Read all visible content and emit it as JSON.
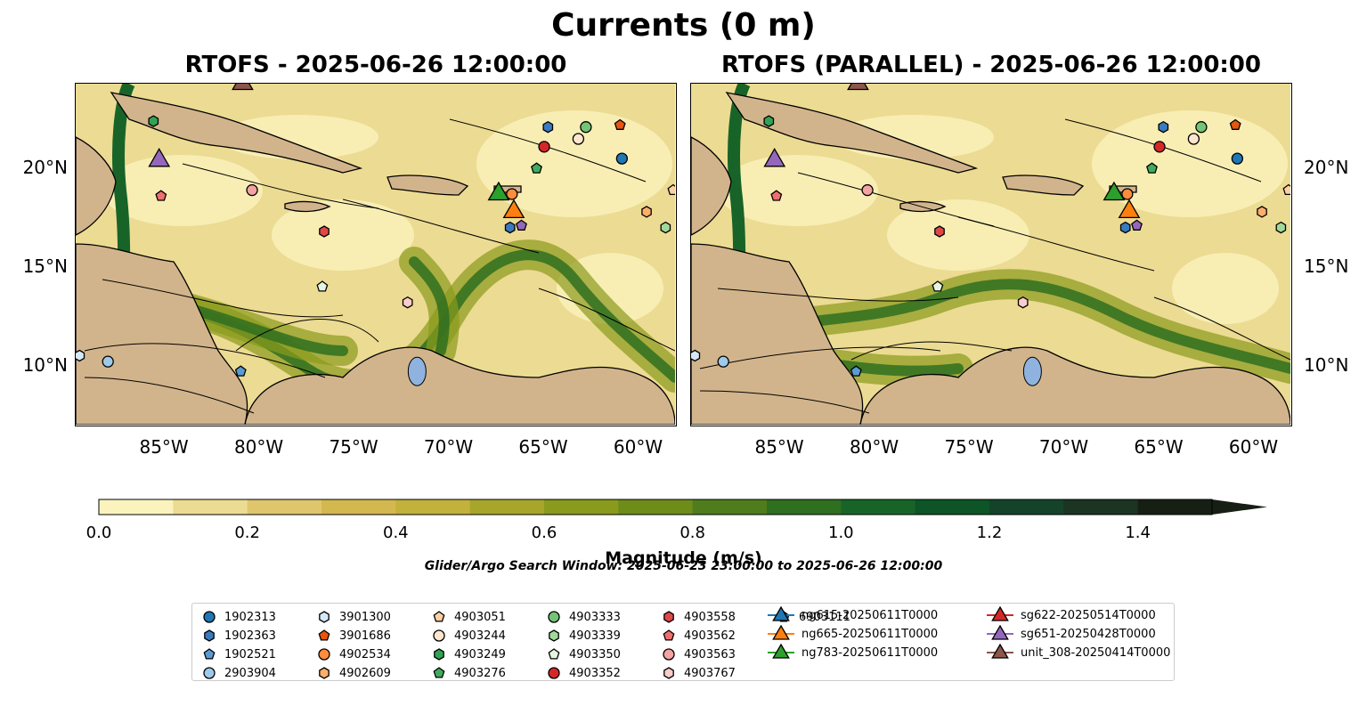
{
  "title": "Currents (0 m)",
  "panels": [
    {
      "title": "RTOFS - 2025-06-26 12:00:00"
    },
    {
      "title": "RTOFS (PARALLEL) - 2025-06-26 12:00:00"
    }
  ],
  "axes": {
    "x_ticks": [
      "85°W",
      "80°W",
      "75°W",
      "70°W",
      "65°W",
      "60°W"
    ],
    "y_ticks": [
      "20°N",
      "15°N",
      "10°N"
    ],
    "x_values": [
      -85,
      -80,
      -75,
      -70,
      -65,
      -60
    ],
    "y_values": [
      20,
      15,
      10
    ],
    "lon_range": [
      -89.7,
      -58.1
    ],
    "lat_range": [
      7.0,
      24.3
    ]
  },
  "colorbar": {
    "label": "Magnitude (m/s)",
    "ticks": [
      "0.0",
      "0.2",
      "0.4",
      "0.6",
      "0.8",
      "1.0",
      "1.2",
      "1.4"
    ],
    "range": [
      0.0,
      1.5
    ],
    "colors": [
      "#fbf3bd",
      "#ecdb92",
      "#dfc66c",
      "#d3b84f",
      "#c2b13b",
      "#a7a62a",
      "#8a9a1d",
      "#6e8c1a",
      "#4f7d1e",
      "#2f6f20",
      "#186428",
      "#0d5426",
      "#14432a",
      "#1b3522",
      "#171f15"
    ]
  },
  "search_window": "Glider/Argo Search Window: 2025-06-23 23:00:00 to 2025-06-26 12:00:00",
  "legend": [
    {
      "label": "1902313",
      "marker": "circle",
      "color": "#1f77b4"
    },
    {
      "label": "1902363",
      "marker": "hexagon",
      "color": "#3a7bbf"
    },
    {
      "label": "1902521",
      "marker": "pentagon",
      "color": "#5a9bd4"
    },
    {
      "label": "2903904",
      "marker": "circle",
      "color": "#9ecae9"
    },
    {
      "label": "3901300",
      "marker": "hexagon",
      "color": "#d6e8f7"
    },
    {
      "label": "3901686",
      "marker": "pentagon",
      "color": "#e6550d"
    },
    {
      "label": "4902534",
      "marker": "circle",
      "color": "#fd8d3c"
    },
    {
      "label": "4902609",
      "marker": "hexagon",
      "color": "#fdae6b"
    },
    {
      "label": "4903051",
      "marker": "pentagon",
      "color": "#fdd0a2"
    },
    {
      "label": "4903244",
      "marker": "circle",
      "color": "#fee6ce"
    },
    {
      "label": "4903249",
      "marker": "hexagon",
      "color": "#31a354"
    },
    {
      "label": "4903276",
      "marker": "pentagon",
      "color": "#41ab5d"
    },
    {
      "label": "4903333",
      "marker": "circle",
      "color": "#74c476"
    },
    {
      "label": "4903339",
      "marker": "hexagon",
      "color": "#a1d99b"
    },
    {
      "label": "4903350",
      "marker": "pentagon",
      "color": "#e5f5e0"
    },
    {
      "label": "4903352",
      "marker": "circle",
      "color": "#d62728"
    },
    {
      "label": "4903558",
      "marker": "hexagon",
      "color": "#e04848"
    },
    {
      "label": "4903562",
      "marker": "pentagon",
      "color": "#ef6f6f"
    },
    {
      "label": "4903563",
      "marker": "circle",
      "color": "#f4a3a3"
    },
    {
      "label": "4903767",
      "marker": "hexagon",
      "color": "#fbcccc"
    },
    {
      "label": "6903111",
      "marker": "pentagon",
      "color": "#9467bd"
    },
    {
      "label": "ng615-20250611T0000",
      "marker": "triangle-line",
      "color": "#1f77b4"
    },
    {
      "label": "ng665-20250611T0000",
      "marker": "triangle-line",
      "color": "#ff7f0e"
    },
    {
      "label": "ng783-20250611T0000",
      "marker": "triangle-line",
      "color": "#2ca02c"
    },
    {
      "label": "sg622-20250514T0000",
      "marker": "triangle-line",
      "color": "#d62728"
    },
    {
      "label": "sg651-20250428T0000",
      "marker": "triangle-line",
      "color": "#9467bd"
    },
    {
      "label": "unit_308-20250414T0000",
      "marker": "triangle-line",
      "color": "#8c564b"
    }
  ],
  "observations": [
    {
      "id": "1902313",
      "lon": -60.9,
      "lat": 20.5,
      "panel": "both"
    },
    {
      "id": "1902363",
      "lon": -66.8,
      "lat": 17.0,
      "panel": "both"
    },
    {
      "id": "1902521",
      "lon": -81.0,
      "lat": 9.7,
      "panel": "both"
    },
    {
      "id": "2903904",
      "lon": -88.0,
      "lat": 10.2,
      "panel": "both"
    },
    {
      "id": "3901300",
      "lon": -89.5,
      "lat": 10.5,
      "panel": "both"
    },
    {
      "id": "3901686",
      "lon": -61.0,
      "lat": 22.2,
      "panel": "both"
    },
    {
      "id": "4902534",
      "lon": -66.7,
      "lat": 18.7,
      "panel": "both"
    },
    {
      "id": "4902609",
      "lon": -59.6,
      "lat": 17.8,
      "panel": "both"
    },
    {
      "id": "4903051",
      "lon": -58.2,
      "lat": 18.9,
      "panel": "both"
    },
    {
      "id": "4903244",
      "lon": -63.2,
      "lat": 21.5,
      "panel": "both"
    },
    {
      "id": "4903249",
      "lon": -85.6,
      "lat": 22.4,
      "panel": "both"
    },
    {
      "id": "4903276",
      "lon": -65.4,
      "lat": 20.0,
      "panel": "both"
    },
    {
      "id": "4903333",
      "lon": -62.8,
      "lat": 22.1,
      "panel": "both"
    },
    {
      "id": "4903339",
      "lon": -58.6,
      "lat": 17.0,
      "panel": "both"
    },
    {
      "id": "4903350",
      "lon": -76.7,
      "lat": 14.0,
      "panel": "both"
    },
    {
      "id": "4903352",
      "lon": -65.0,
      "lat": 21.1,
      "panel": "both"
    },
    {
      "id": "4903558",
      "lon": -76.6,
      "lat": 16.8,
      "panel": "both"
    },
    {
      "id": "4903562",
      "lon": -85.2,
      "lat": 18.6,
      "panel": "both"
    },
    {
      "id": "4903563",
      "lon": -80.4,
      "lat": 18.9,
      "panel": "both"
    },
    {
      "id": "4903767",
      "lon": -72.2,
      "lat": 13.2,
      "panel": "both"
    },
    {
      "id": "6903111",
      "lon": -66.2,
      "lat": 17.1,
      "panel": "both"
    },
    {
      "id": "1902363",
      "lon": -64.8,
      "lat": 22.1,
      "panel": "both"
    }
  ],
  "gliders": [
    {
      "id": "ng665-20250611T0000",
      "lon": -66.6,
      "lat": 17.8
    },
    {
      "id": "ng783-20250611T0000",
      "lon": -67.4,
      "lat": 18.7
    },
    {
      "id": "sg651-20250428T0000",
      "lon": -85.3,
      "lat": 20.4
    },
    {
      "id": "unit_308-20250414T0000",
      "lon": -80.9,
      "lat": 24.3
    }
  ]
}
